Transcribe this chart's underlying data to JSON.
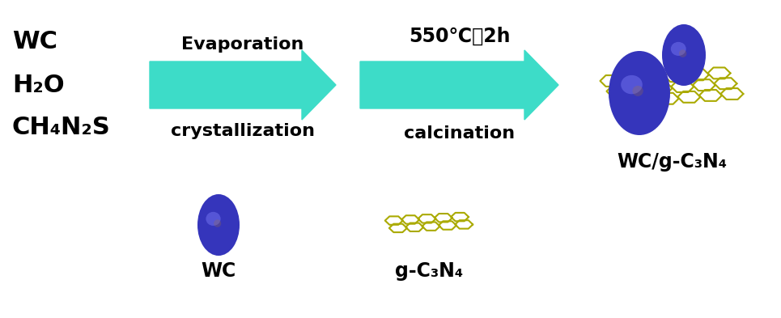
{
  "bg_color": "#ffffff",
  "arrow_color": "#3DDCC8",
  "label_top1": "Evaporation",
  "label_bot1": "crystallization",
  "label_top2": "550℃，2h",
  "label_bot2": "calcination",
  "text_left": [
    "WC",
    "H₂O",
    "CH₄N₂S"
  ],
  "label_wc": "WC",
  "label_gcn": "g-C₃N₄",
  "label_wc_gcn": "WC/g-C₃N₄",
  "wc_particle_color": "#3535BB",
  "gcn_sheet_color": "#AAAA00",
  "font_size_left": 22,
  "font_size_arrow_label": 16,
  "font_size_bottom_label": 17
}
